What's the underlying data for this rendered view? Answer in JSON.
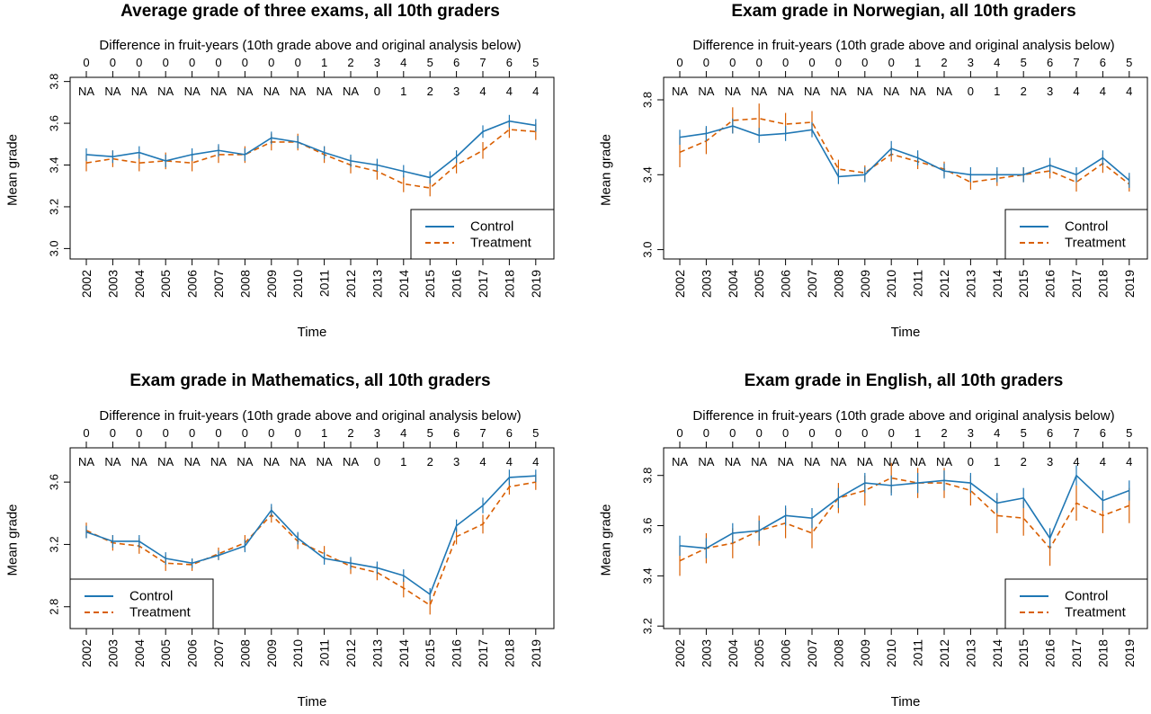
{
  "colors": {
    "control": "#1F77B4",
    "treatment": "#D95F02",
    "axis": "#000000"
  },
  "chart_data": [
    {
      "type": "line",
      "title": "Average grade of three exams, all 10th graders",
      "subtitle": "Difference in fruit-years (10th grade above and original analysis below)",
      "xlabel": "Time",
      "ylabel": "Mean grade",
      "categories": [
        "2002",
        "2003",
        "2004",
        "2005",
        "2006",
        "2007",
        "2008",
        "2009",
        "2010",
        "2011",
        "2012",
        "2013",
        "2014",
        "2015",
        "2016",
        "2017",
        "2018",
        "2019"
      ],
      "top_labels": [
        "0",
        "0",
        "0",
        "0",
        "0",
        "0",
        "0",
        "0",
        "0",
        "1",
        "2",
        "3",
        "4",
        "5",
        "6",
        "7",
        "6",
        "5"
      ],
      "inner_labels": [
        "NA",
        "NA",
        "NA",
        "NA",
        "NA",
        "NA",
        "NA",
        "NA",
        "NA",
        "NA",
        "NA",
        "0",
        "1",
        "2",
        "3",
        "4",
        "4",
        "4"
      ],
      "ylim": [
        2.95,
        3.82
      ],
      "yticks": [
        "3.0",
        "3.2",
        "3.4",
        "3.6",
        "3.8"
      ],
      "legend_position": "bottom-right",
      "series": [
        {
          "name": "Control",
          "style": "solid",
          "values": [
            3.45,
            3.44,
            3.46,
            3.42,
            3.45,
            3.47,
            3.45,
            3.53,
            3.51,
            3.46,
            3.42,
            3.4,
            3.37,
            3.34,
            3.44,
            3.56,
            3.61,
            3.59
          ],
          "err": [
            0.03,
            0.03,
            0.03,
            0.03,
            0.03,
            0.03,
            0.03,
            0.03,
            0.03,
            0.03,
            0.03,
            0.03,
            0.03,
            0.03,
            0.03,
            0.03,
            0.03,
            0.03
          ]
        },
        {
          "name": "Treatment",
          "style": "dashed",
          "values": [
            3.41,
            3.43,
            3.41,
            3.42,
            3.41,
            3.45,
            3.45,
            3.51,
            3.51,
            3.45,
            3.4,
            3.37,
            3.31,
            3.29,
            3.4,
            3.47,
            3.57,
            3.56
          ],
          "err": [
            0.04,
            0.04,
            0.04,
            0.04,
            0.04,
            0.04,
            0.04,
            0.04,
            0.04,
            0.04,
            0.04,
            0.04,
            0.04,
            0.04,
            0.04,
            0.04,
            0.04,
            0.04
          ]
        }
      ]
    },
    {
      "type": "line",
      "title": "Exam grade in Norwegian, all 10th graders",
      "subtitle": "Difference in fruit-years (10th grade above and original analysis below)",
      "xlabel": "Time",
      "ylabel": "Mean grade",
      "categories": [
        "2002",
        "2003",
        "2004",
        "2005",
        "2006",
        "2007",
        "2008",
        "2009",
        "2010",
        "2011",
        "2012",
        "2013",
        "2014",
        "2015",
        "2016",
        "2017",
        "2018",
        "2019"
      ],
      "top_labels": [
        "0",
        "0",
        "0",
        "0",
        "0",
        "0",
        "0",
        "0",
        "0",
        "1",
        "2",
        "3",
        "4",
        "5",
        "6",
        "7",
        "6",
        "5"
      ],
      "inner_labels": [
        "NA",
        "NA",
        "NA",
        "NA",
        "NA",
        "NA",
        "NA",
        "NA",
        "NA",
        "NA",
        "NA",
        "0",
        "1",
        "2",
        "3",
        "4",
        "4",
        "4"
      ],
      "ylim": [
        2.95,
        3.92
      ],
      "yticks": [
        "3.0",
        "3.4",
        "3.8"
      ],
      "legend_position": "bottom-right",
      "series": [
        {
          "name": "Control",
          "style": "solid",
          "values": [
            3.6,
            3.62,
            3.66,
            3.61,
            3.62,
            3.64,
            3.39,
            3.4,
            3.54,
            3.49,
            3.42,
            3.4,
            3.4,
            3.4,
            3.45,
            3.4,
            3.49,
            3.37
          ],
          "err": [
            0.04,
            0.04,
            0.04,
            0.04,
            0.04,
            0.04,
            0.04,
            0.04,
            0.04,
            0.04,
            0.04,
            0.04,
            0.04,
            0.04,
            0.04,
            0.04,
            0.04,
            0.04
          ]
        },
        {
          "name": "Treatment",
          "style": "dashed",
          "values": [
            3.52,
            3.58,
            3.69,
            3.7,
            3.67,
            3.68,
            3.43,
            3.41,
            3.51,
            3.47,
            3.43,
            3.36,
            3.38,
            3.4,
            3.42,
            3.36,
            3.46,
            3.35
          ],
          "err": [
            0.08,
            0.07,
            0.07,
            0.08,
            0.06,
            0.06,
            0.05,
            0.04,
            0.04,
            0.04,
            0.04,
            0.04,
            0.04,
            0.04,
            0.04,
            0.05,
            0.05,
            0.04
          ]
        }
      ]
    },
    {
      "type": "line",
      "title": "Exam grade in Mathematics, all 10th graders",
      "subtitle": "Difference in fruit-years (10th grade above and original analysis below)",
      "xlabel": "Time",
      "ylabel": "Mean grade",
      "categories": [
        "2002",
        "2003",
        "2004",
        "2005",
        "2006",
        "2007",
        "2008",
        "2009",
        "2010",
        "2011",
        "2012",
        "2013",
        "2014",
        "2015",
        "2016",
        "2017",
        "2018",
        "2019"
      ],
      "top_labels": [
        "0",
        "0",
        "0",
        "0",
        "0",
        "0",
        "0",
        "0",
        "0",
        "1",
        "2",
        "3",
        "4",
        "5",
        "6",
        "7",
        "6",
        "5"
      ],
      "inner_labels": [
        "NA",
        "NA",
        "NA",
        "NA",
        "NA",
        "NA",
        "NA",
        "NA",
        "NA",
        "NA",
        "NA",
        "0",
        "1",
        "2",
        "3",
        "4",
        "4",
        "4"
      ],
      "ylim": [
        2.66,
        3.82
      ],
      "yticks": [
        "2.8",
        "3.2",
        "3.6"
      ],
      "legend_position": "bottom-left",
      "series": [
        {
          "name": "Control",
          "style": "solid",
          "values": [
            3.28,
            3.22,
            3.22,
            3.11,
            3.08,
            3.13,
            3.19,
            3.42,
            3.24,
            3.11,
            3.08,
            3.05,
            3.0,
            2.88,
            3.32,
            3.45,
            3.63,
            3.64
          ],
          "err": [
            0.04,
            0.04,
            0.04,
            0.04,
            0.03,
            0.03,
            0.04,
            0.04,
            0.04,
            0.04,
            0.04,
            0.04,
            0.04,
            0.04,
            0.04,
            0.05,
            0.05,
            0.04
          ]
        },
        {
          "name": "Treatment",
          "style": "dashed",
          "values": [
            3.29,
            3.21,
            3.19,
            3.08,
            3.07,
            3.14,
            3.21,
            3.39,
            3.22,
            3.14,
            3.06,
            3.02,
            2.92,
            2.81,
            3.25,
            3.33,
            3.57,
            3.6
          ],
          "err": [
            0.05,
            0.05,
            0.05,
            0.05,
            0.04,
            0.04,
            0.05,
            0.05,
            0.05,
            0.05,
            0.05,
            0.05,
            0.06,
            0.06,
            0.05,
            0.06,
            0.05,
            0.05
          ]
        }
      ]
    },
    {
      "type": "line",
      "title": "Exam grade in English, all 10th graders",
      "subtitle": "Difference in fruit-years (10th grade above and original analysis below)",
      "xlabel": "Time",
      "ylabel": "Mean grade",
      "categories": [
        "2002",
        "2003",
        "2004",
        "2005",
        "2006",
        "2007",
        "2008",
        "2009",
        "2010",
        "2011",
        "2012",
        "2013",
        "2014",
        "2015",
        "2016",
        "2017",
        "2018",
        "2019"
      ],
      "top_labels": [
        "0",
        "0",
        "0",
        "0",
        "0",
        "0",
        "0",
        "0",
        "0",
        "1",
        "2",
        "3",
        "4",
        "5",
        "6",
        "7",
        "6",
        "5"
      ],
      "inner_labels": [
        "NA",
        "NA",
        "NA",
        "NA",
        "NA",
        "NA",
        "NA",
        "NA",
        "NA",
        "NA",
        "NA",
        "0",
        "1",
        "2",
        "3",
        "4",
        "4",
        "4"
      ],
      "ylim": [
        3.19,
        3.91
      ],
      "yticks": [
        "3.2",
        "3.4",
        "3.6",
        "3.8"
      ],
      "legend_position": "bottom-right",
      "series": [
        {
          "name": "Control",
          "style": "solid",
          "values": [
            3.52,
            3.51,
            3.57,
            3.58,
            3.64,
            3.63,
            3.71,
            3.77,
            3.76,
            3.77,
            3.78,
            3.77,
            3.69,
            3.71,
            3.55,
            3.8,
            3.7,
            3.74
          ],
          "err": [
            0.04,
            0.04,
            0.04,
            0.04,
            0.04,
            0.04,
            0.04,
            0.04,
            0.04,
            0.04,
            0.04,
            0.04,
            0.04,
            0.04,
            0.04,
            0.04,
            0.04,
            0.04
          ]
        },
        {
          "name": "Treatment",
          "style": "dashed",
          "values": [
            3.46,
            3.51,
            3.53,
            3.58,
            3.61,
            3.57,
            3.71,
            3.74,
            3.79,
            3.77,
            3.77,
            3.74,
            3.64,
            3.63,
            3.51,
            3.69,
            3.64,
            3.68
          ],
          "err": [
            0.06,
            0.06,
            0.06,
            0.06,
            0.06,
            0.06,
            0.06,
            0.06,
            0.06,
            0.06,
            0.06,
            0.06,
            0.07,
            0.07,
            0.07,
            0.07,
            0.07,
            0.07
          ]
        }
      ]
    }
  ]
}
